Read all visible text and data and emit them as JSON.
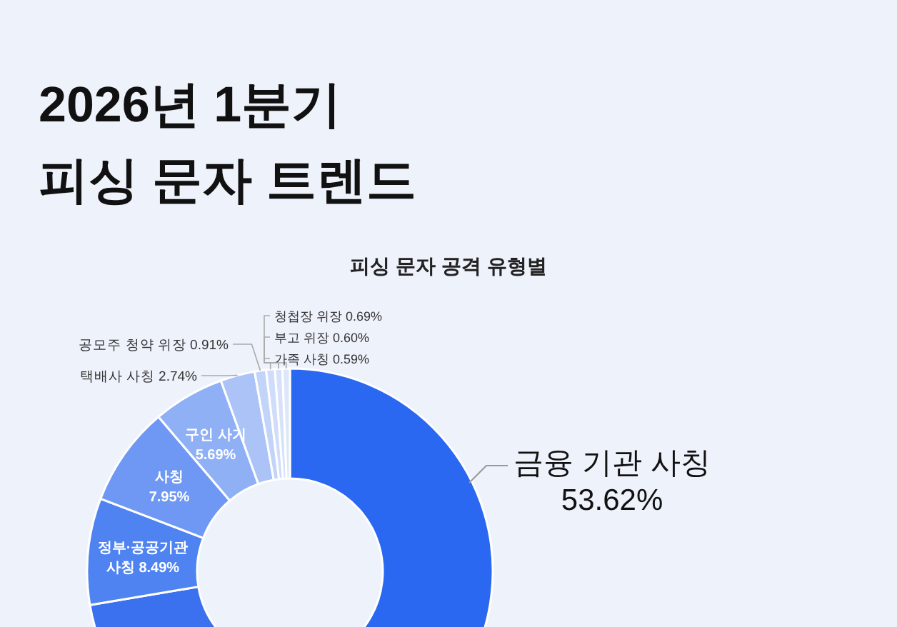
{
  "chart_data": {
    "type": "donut",
    "title": "2026년 1분기\n피싱 문자 트렌드",
    "subtitle": "피싱 문자 공격 유형별",
    "categories": [
      "금융 기관 사칭",
      null,
      "정부·공공기관 사칭",
      "사칭",
      "구인 사기",
      "택배사 사칭",
      "공모주 청약 위장",
      "청첩장 위장",
      "부고 위장",
      "가족 사칭"
    ],
    "values": [
      53.62,
      18.72,
      8.49,
      7.95,
      5.69,
      2.74,
      0.91,
      0.69,
      0.6,
      0.59
    ],
    "colors": [
      "#2b68f1",
      "#3b70ef",
      "#4f83f1",
      "#6e98f3",
      "#8fb0f5",
      "#abc3f7",
      "#c3d4f9",
      "#cfdcfa",
      "#d6e1fa",
      "#dde6fb"
    ],
    "value_labels": [
      "53.62%",
      null,
      "8.49%",
      "7.95%",
      "5.69%",
      "2.74%",
      "0.91%",
      "0.69%",
      "0.60%",
      "0.59%"
    ]
  }
}
